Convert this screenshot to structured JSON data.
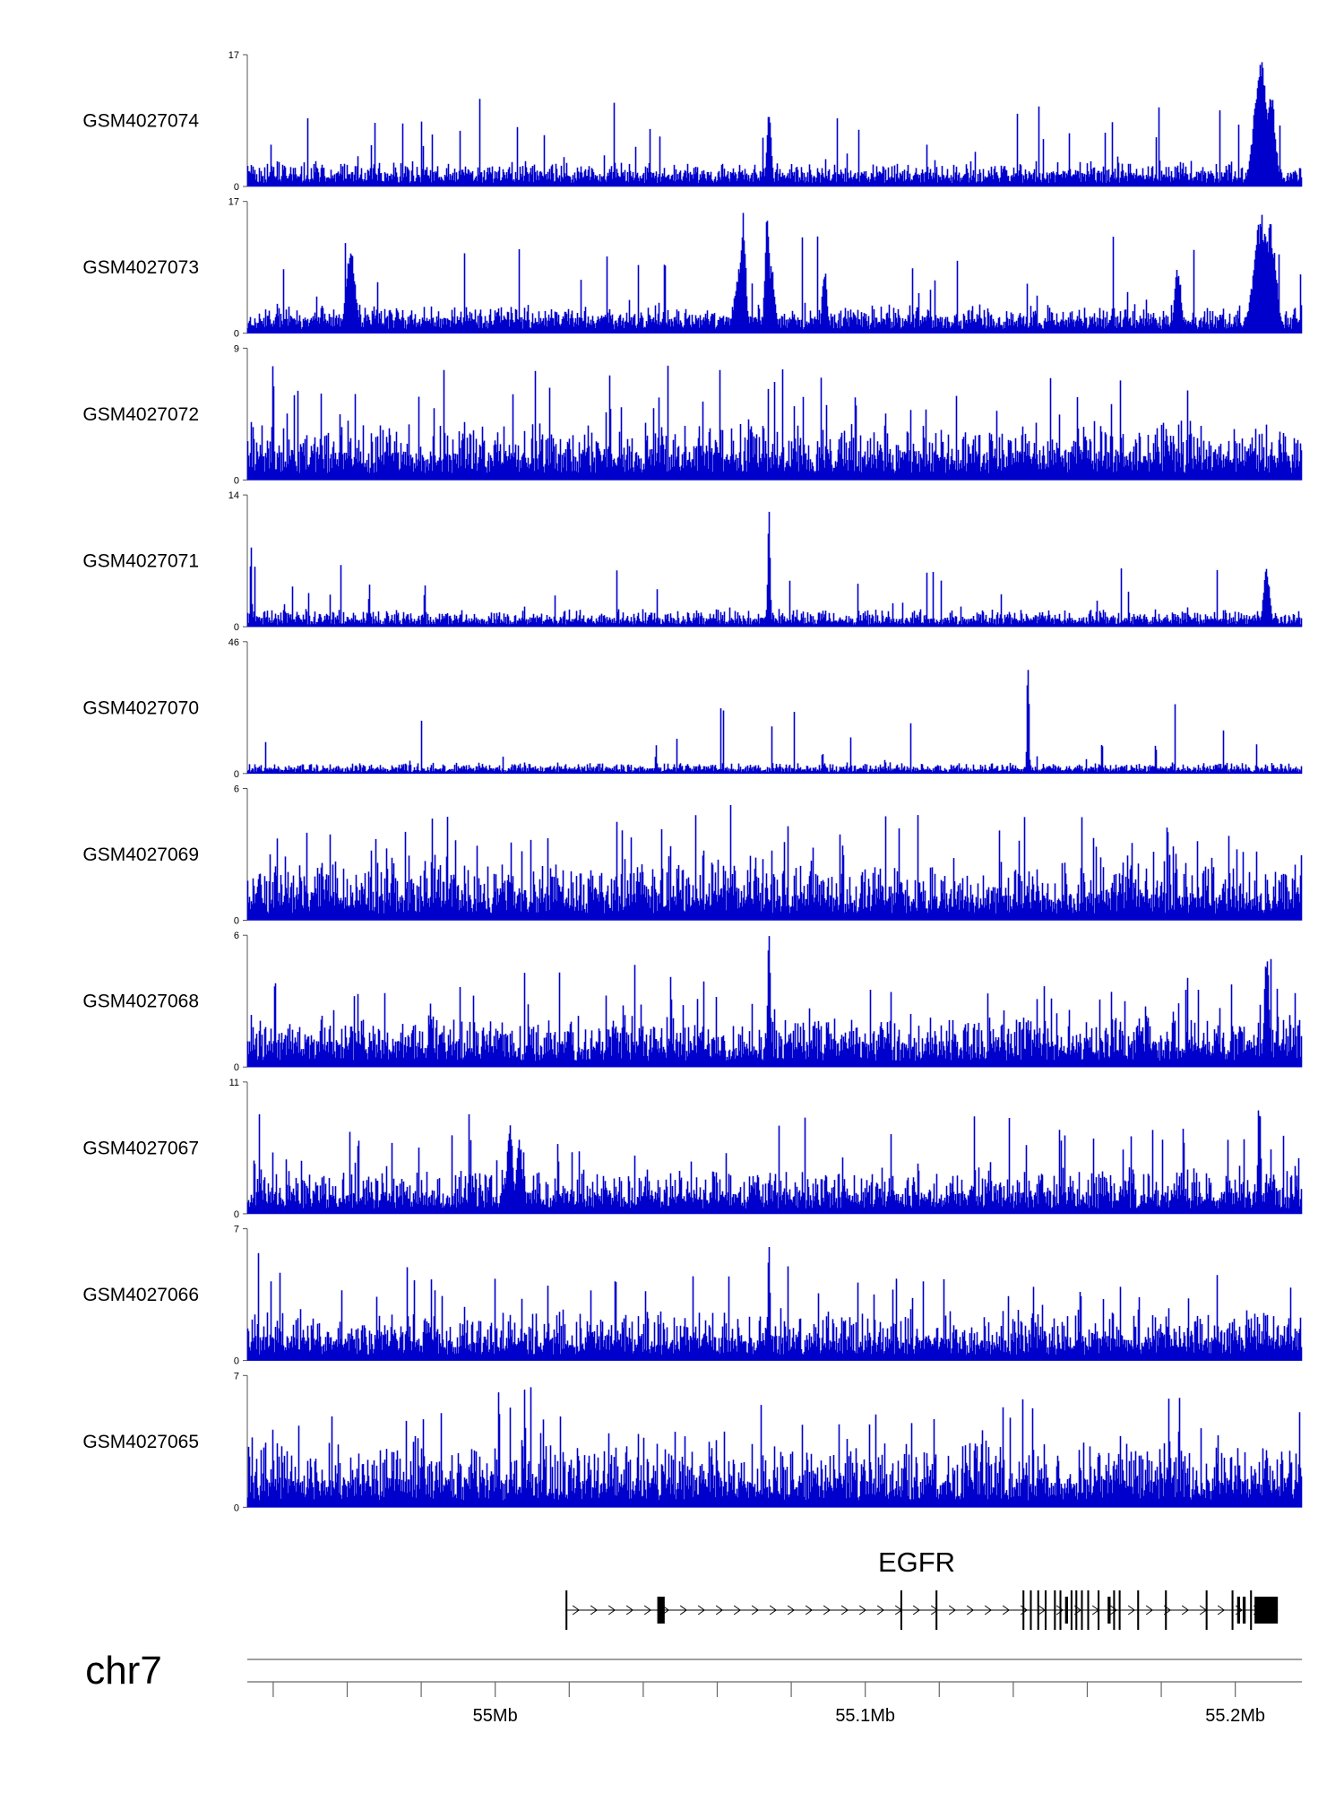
{
  "chart_data": {
    "type": "area",
    "title": "",
    "series_color": "#0000CC",
    "xlim_mb": [
      54.933,
      55.218
    ],
    "tracks": [
      {
        "name": "GSM4027074",
        "ymax": 17,
        "ymin": 0,
        "base": 1.4,
        "noise": 1.6,
        "spike_p": 0.03,
        "spike_scale": 3.0,
        "peaks": [
          {
            "x": 55.074,
            "h": 10,
            "w": 0.0006
          },
          {
            "x": 55.207,
            "h": 17,
            "w": 0.0018
          },
          {
            "x": 55.2095,
            "h": 14,
            "w": 0.0012
          }
        ]
      },
      {
        "name": "GSM4027073",
        "ymax": 17,
        "ymin": 0,
        "base": 1.6,
        "noise": 1.8,
        "spike_p": 0.04,
        "spike_scale": 4.0,
        "peaks": [
          {
            "x": 54.961,
            "h": 11,
            "w": 0.0012
          },
          {
            "x": 55.067,
            "h": 16.5,
            "w": 0.0007
          },
          {
            "x": 55.066,
            "h": 9,
            "w": 0.0012
          },
          {
            "x": 55.0735,
            "h": 16,
            "w": 0.0006
          },
          {
            "x": 55.0745,
            "h": 9,
            "w": 0.001
          },
          {
            "x": 55.089,
            "h": 9,
            "w": 0.0006
          },
          {
            "x": 55.1845,
            "h": 9.5,
            "w": 0.0008
          },
          {
            "x": 55.207,
            "h": 15.5,
            "w": 0.002
          },
          {
            "x": 55.2095,
            "h": 14.5,
            "w": 0.0015
          }
        ]
      },
      {
        "name": "GSM4027072",
        "ymax": 9,
        "ymin": 0,
        "base": 1.5,
        "noise": 2.2,
        "spike_p": 0.08,
        "spike_scale": 3.0,
        "peaks": [
          {
            "x": 54.94,
            "h": 8.8,
            "w": 0.0002
          },
          {
            "x": 55.031,
            "h": 8,
            "w": 0.0002
          }
        ]
      },
      {
        "name": "GSM4027071",
        "ymax": 14,
        "ymin": 0,
        "base": 0.7,
        "noise": 1.0,
        "spike_p": 0.03,
        "spike_scale": 2.5,
        "peaks": [
          {
            "x": 54.934,
            "h": 9.5,
            "w": 0.0002
          },
          {
            "x": 55.074,
            "h": 14,
            "w": 0.0003
          },
          {
            "x": 54.966,
            "h": 5,
            "w": 0.0002
          },
          {
            "x": 54.981,
            "h": 5,
            "w": 0.0002
          },
          {
            "x": 55.2085,
            "h": 6.5,
            "w": 0.0008
          }
        ]
      },
      {
        "name": "GSM4027070",
        "ymax": 46,
        "ymin": 0,
        "base": 1.5,
        "noise": 2.0,
        "spike_p": 0.025,
        "spike_scale": 3.0,
        "peaks": [
          {
            "x": 55.144,
            "h": 46,
            "w": 0.00025
          },
          {
            "x": 55.0435,
            "h": 11,
            "w": 0.0002
          },
          {
            "x": 55.0885,
            "h": 9,
            "w": 0.0002
          },
          {
            "x": 55.164,
            "h": 13,
            "w": 0.0002
          },
          {
            "x": 55.1785,
            "h": 12,
            "w": 0.0002
          }
        ]
      },
      {
        "name": "GSM4027069",
        "ymax": 6,
        "ymin": 0,
        "base": 1.0,
        "noise": 1.6,
        "spike_p": 0.12,
        "spike_scale": 3.0,
        "peaks": []
      },
      {
        "name": "GSM4027068",
        "ymax": 6,
        "ymin": 0,
        "base": 0.9,
        "noise": 1.3,
        "spike_p": 0.07,
        "spike_scale": 3.0,
        "peaks": [
          {
            "x": 55.074,
            "h": 6,
            "w": 0.0004
          },
          {
            "x": 55.2085,
            "h": 6,
            "w": 0.0006
          },
          {
            "x": 55.0475,
            "h": 5.2,
            "w": 0.0002
          }
        ]
      },
      {
        "name": "GSM4027067",
        "ymax": 11,
        "ymin": 0,
        "base": 1.4,
        "noise": 2.2,
        "spike_p": 0.07,
        "spike_scale": 3.2,
        "peaks": [
          {
            "x": 55.004,
            "h": 8,
            "w": 0.0008
          },
          {
            "x": 55.0065,
            "h": 6.5,
            "w": 0.0008
          },
          {
            "x": 55.2065,
            "h": 10.5,
            "w": 0.0004
          }
        ]
      },
      {
        "name": "GSM4027066",
        "ymax": 7,
        "ymin": 0,
        "base": 1.0,
        "noise": 1.5,
        "spike_p": 0.06,
        "spike_scale": 3.0,
        "peaks": [
          {
            "x": 55.074,
            "h": 7,
            "w": 0.0003
          },
          {
            "x": 55.0325,
            "h": 5.4,
            "w": 0.0002
          }
        ]
      },
      {
        "name": "GSM4027065",
        "ymax": 7,
        "ymin": 0,
        "base": 1.2,
        "noise": 2.0,
        "spike_p": 0.09,
        "spike_scale": 3.0,
        "peaks": [
          {
            "x": 55.001,
            "h": 7,
            "w": 0.0002
          },
          {
            "x": 55.008,
            "h": 7,
            "w": 0.0002
          }
        ]
      }
    ],
    "gene": {
      "name": "EGFR",
      "start_mb": 55.019,
      "end_mb": 55.2115,
      "strand": "+",
      "exons": [
        {
          "start": 55.019,
          "end": 55.0195,
          "thick": false
        },
        {
          "start": 55.0438,
          "end": 55.0458,
          "thick": true
        },
        {
          "start": 55.1095,
          "end": 55.11,
          "thick": false
        },
        {
          "start": 55.119,
          "end": 55.1195,
          "thick": false
        },
        {
          "start": 55.1425,
          "end": 55.143,
          "thick": false
        },
        {
          "start": 55.1445,
          "end": 55.145,
          "thick": false
        },
        {
          "start": 55.1465,
          "end": 55.147,
          "thick": false
        },
        {
          "start": 55.1485,
          "end": 55.149,
          "thick": false
        },
        {
          "start": 55.151,
          "end": 55.1515,
          "thick": false
        },
        {
          "start": 55.1525,
          "end": 55.153,
          "thick": false
        },
        {
          "start": 55.154,
          "end": 55.1548,
          "thick": true
        },
        {
          "start": 55.1555,
          "end": 55.156,
          "thick": false
        },
        {
          "start": 55.1568,
          "end": 55.1573,
          "thick": false
        },
        {
          "start": 55.1583,
          "end": 55.1588,
          "thick": false
        },
        {
          "start": 55.16,
          "end": 55.1605,
          "thick": false
        },
        {
          "start": 55.1628,
          "end": 55.1633,
          "thick": false
        },
        {
          "start": 55.1655,
          "end": 55.1663,
          "thick": true
        },
        {
          "start": 55.167,
          "end": 55.1675,
          "thick": false
        },
        {
          "start": 55.1685,
          "end": 55.169,
          "thick": false
        },
        {
          "start": 55.1735,
          "end": 55.174,
          "thick": false
        },
        {
          "start": 55.181,
          "end": 55.1815,
          "thick": false
        },
        {
          "start": 55.192,
          "end": 55.1925,
          "thick": false
        },
        {
          "start": 55.199,
          "end": 55.1995,
          "thick": false
        },
        {
          "start": 55.2005,
          "end": 55.2013,
          "thick": true
        },
        {
          "start": 55.202,
          "end": 55.2028,
          "thick": true
        },
        {
          "start": 55.204,
          "end": 55.2045,
          "thick": false
        },
        {
          "start": 55.2052,
          "end": 55.2115,
          "thick": true
        }
      ]
    },
    "axis": {
      "chromosome": "chr7",
      "major_ticks": [
        55.0,
        55.1,
        55.2
      ],
      "major_labels": [
        "55Mb",
        "55.1Mb",
        "55.2Mb"
      ],
      "minor_ticks": [
        54.94,
        54.96,
        54.98,
        55.0,
        55.02,
        55.04,
        55.06,
        55.08,
        55.1,
        55.12,
        55.14,
        55.16,
        55.18,
        55.2
      ]
    }
  }
}
